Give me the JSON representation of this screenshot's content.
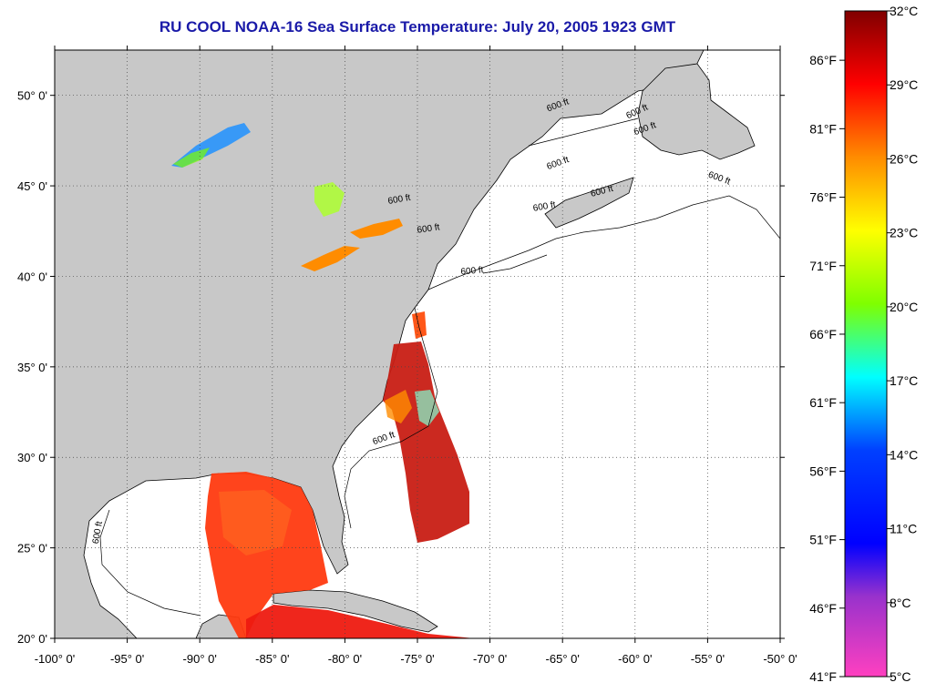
{
  "title": "RU COOL  NOAA-16  Sea Surface Temperature:  July 20, 2005 1923 GMT",
  "map": {
    "lon_range": [
      -100,
      -50
    ],
    "lat_range": [
      20,
      52.5
    ],
    "lon_ticks": [
      "-100° 0'",
      "-95° 0'",
      "-90° 0'",
      "-85° 0'",
      "-80° 0'",
      "-75° 0'",
      "-70° 0'",
      "-65° 0'",
      "-60° 0'",
      "-55° 0'",
      "-50° 0'"
    ],
    "lat_ticks": [
      "20° 0'",
      "25° 0'",
      "30° 0'",
      "35° 0'",
      "40° 0'",
      "45° 0'",
      "50° 0'"
    ],
    "grid": "dotted",
    "land_color": "#c8c8c8",
    "isobath_label": "600 ft",
    "isobath_labels": [
      "600 ft",
      "600 ft",
      "600 ft",
      "600 ft",
      "600 ft",
      "600 ft",
      "600 ft",
      "600 ft",
      "600 ft",
      "600 ft",
      "600 ft",
      "600 ft"
    ]
  },
  "colorbar": {
    "celsius_labels": [
      "32°C",
      "29°C",
      "26°C",
      "23°C",
      "20°C",
      "17°C",
      "14°C",
      "11°C",
      "8°C",
      "5°C"
    ],
    "fahrenheit_labels": [
      "86°F",
      "81°F",
      "76°F",
      "71°F",
      "66°F",
      "61°F",
      "56°F",
      "51°F",
      "46°F",
      "41°F"
    ],
    "range_c": [
      5,
      32
    ],
    "colors": [
      "#8b0000",
      "#ff0000",
      "#ff8c00",
      "#ffff00",
      "#7fff00",
      "#00ffff",
      "#0000ff",
      "#ff69b4"
    ]
  }
}
